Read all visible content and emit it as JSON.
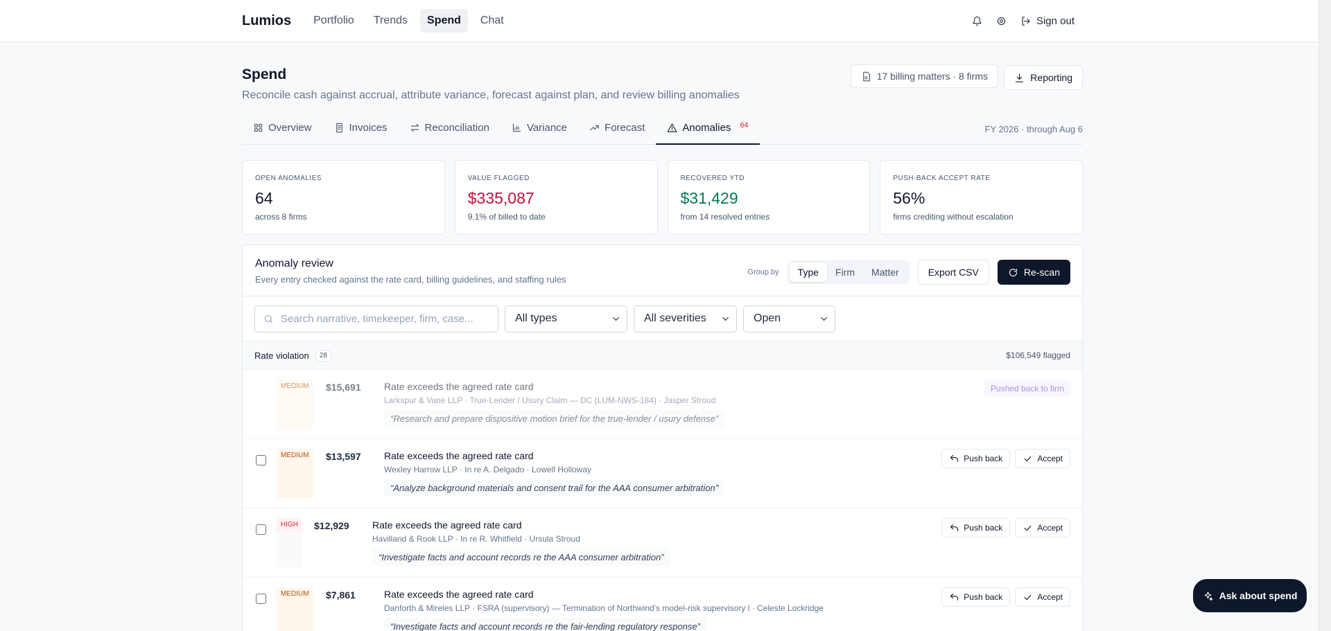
{
  "nav": {
    "brand": "Lumios",
    "links": [
      "Portfolio",
      "Trends",
      "Spend",
      "Chat"
    ],
    "sign_out": "Sign out"
  },
  "header": {
    "title": "Spend",
    "subtitle": "Reconcile cash against accrual, attribute variance, forecast against plan, and review billing anomalies",
    "badge": "17 billing matters · 8 firms",
    "button": "Reporting"
  },
  "tabs": {
    "items": [
      "Overview",
      "Invoices",
      "Reconciliation",
      "Variance",
      "Forecast",
      "Anomalies"
    ],
    "anomalies_count": 64,
    "period": "FY 2026 · through Aug 6"
  },
  "kpis": [
    {
      "label": "OPEN ANOMALIES",
      "value": "64",
      "note": "across 8 firms"
    },
    {
      "label": "VALUE FLAGGED",
      "value": "$335,087",
      "note": "9.1% of billed to date"
    },
    {
      "label": "RECOVERED YTD",
      "value": "$31,429",
      "note": "from 14 resolved entries"
    },
    {
      "label": "PUSH-BACK ACCEPT RATE",
      "value": "56%",
      "note": "firms crediting without escalation"
    }
  ],
  "review": {
    "title": "Anomaly review",
    "subtitle": "Every entry checked against the rate card, billing guidelines, and staffing rules",
    "group_by": "Group by",
    "group_options": [
      "Type",
      "Firm",
      "Matter"
    ],
    "export": "Export CSV",
    "rescan": "Re-scan"
  },
  "filters": {
    "search": "Search narrative, timekeeper, firm, case...",
    "selects": [
      "All types",
      "All severities",
      "Open"
    ]
  },
  "group": {
    "name": "Rate violation",
    "count": 28,
    "total": "$106,549 flagged"
  },
  "rows": [
    {
      "severity": "MEDIUM",
      "amount": "$15,691",
      "title": "Rate exceeds the agreed rate card",
      "meta": "Larkspur & Vane LLP · True-Lender / Usury Claim — DC (LUM-NWS-184) · Jasper Stroud",
      "narrative": "“Research and prepare dispositive motion brief for the true-lender / usury defense”",
      "status": "Pushed back to firm"
    },
    {
      "severity": "MEDIUM",
      "amount": "$13,597",
      "title": "Rate exceeds the agreed rate card",
      "meta": "Wexley Harrow LLP · In re A. Delgado · Lowell Holloway",
      "narrative": "“Analyze background materials and consent trail for the AAA consumer arbitration”",
      "actions": [
        "Push back",
        "Accept"
      ]
    },
    {
      "severity": "HIGH",
      "amount": "$12,929",
      "title": "Rate exceeds the agreed rate card",
      "meta": "Havilland & Rook LLP · In re R. Whitfield · Ursula Stroud",
      "narrative": "“Investigate facts and account records re the AAA consumer arbitration”",
      "actions": [
        "Push back",
        "Accept"
      ]
    },
    {
      "severity": "MEDIUM",
      "amount": "$7,861",
      "title": "Rate exceeds the agreed rate card",
      "meta": "Danforth & Mireles LLP · FSRA (supervisory) — Termination of Northwind's model-risk supervisory l · Celeste Lockridge",
      "narrative": "“Investigate facts and account records re the fair-lending regulatory response”",
      "actions": [
        "Push back",
        "Accept"
      ]
    }
  ],
  "fab": "Ask about spend"
}
